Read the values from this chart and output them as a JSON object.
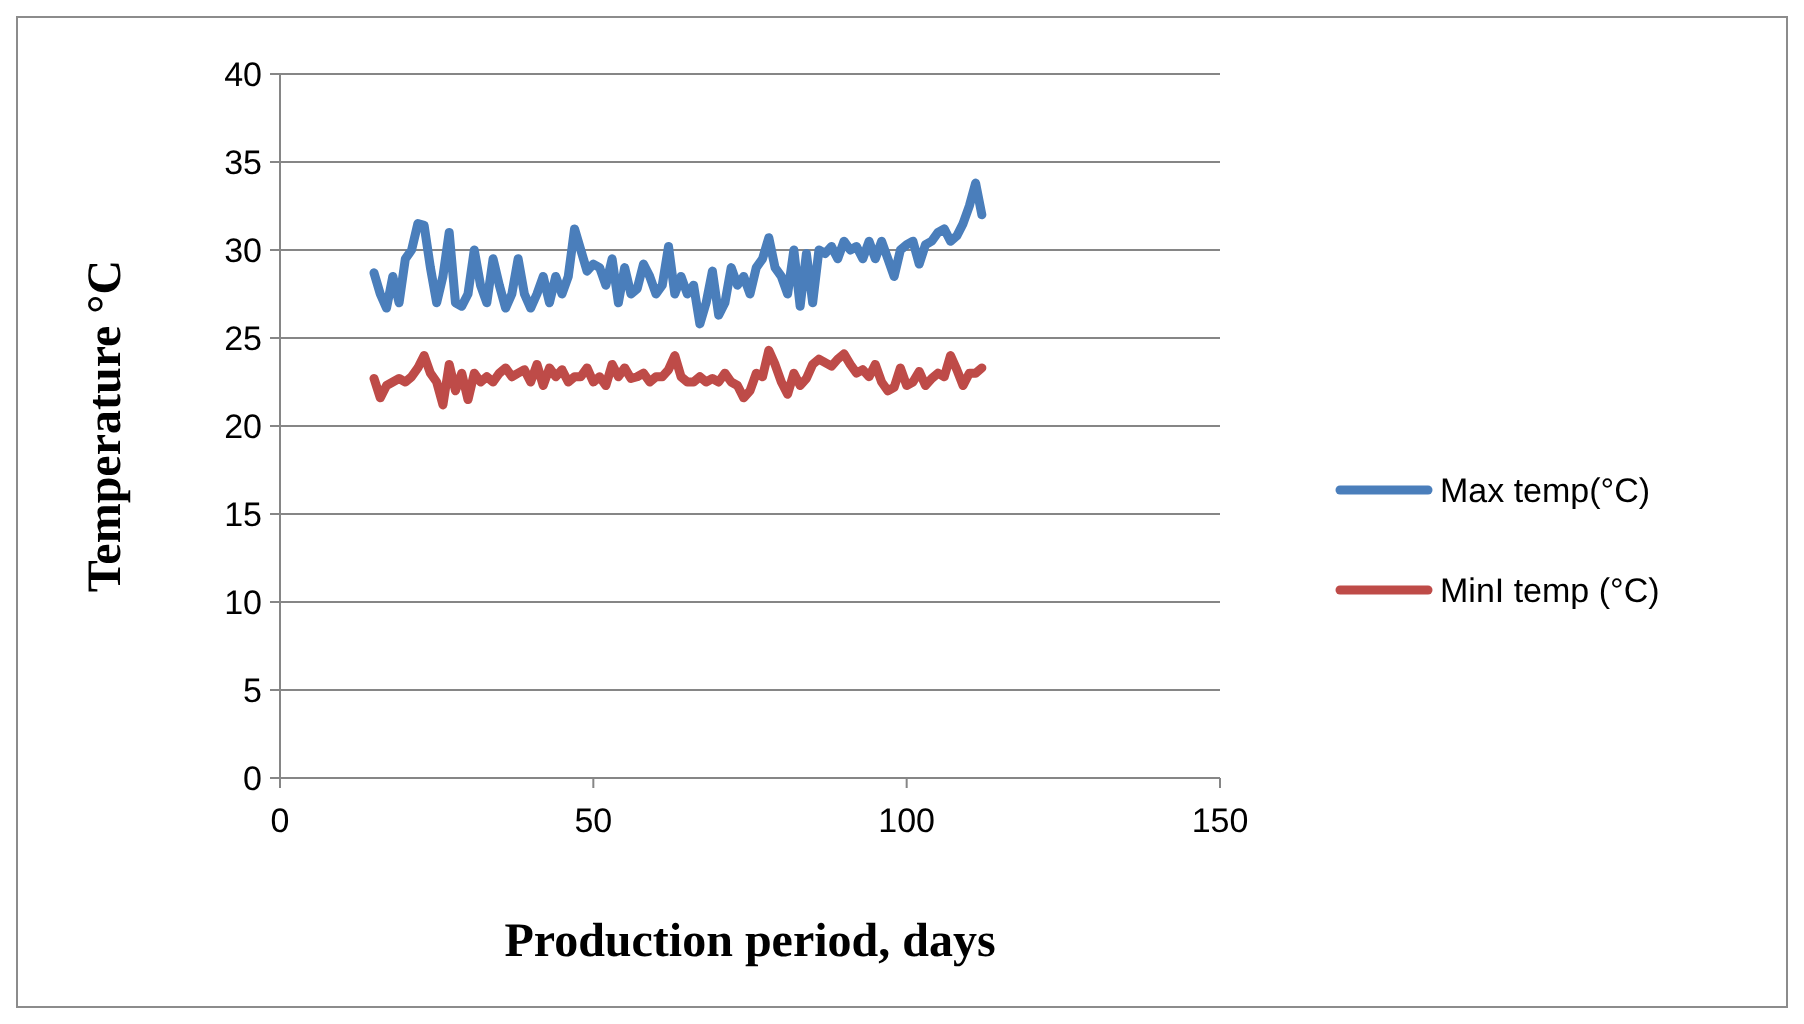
{
  "chart_data": {
    "type": "line",
    "xlabel": "Production period, days",
    "ylabel": "Temperature °C",
    "x": [
      15,
      16,
      17,
      18,
      19,
      20,
      21,
      22,
      23,
      24,
      25,
      26,
      27,
      28,
      29,
      30,
      31,
      32,
      33,
      34,
      35,
      36,
      37,
      38,
      39,
      40,
      41,
      42,
      43,
      44,
      45,
      46,
      47,
      48,
      49,
      50,
      51,
      52,
      53,
      54,
      55,
      56,
      57,
      58,
      59,
      60,
      61,
      62,
      63,
      64,
      65,
      66,
      67,
      68,
      69,
      70,
      71,
      72,
      73,
      74,
      75,
      76,
      77,
      78,
      79,
      80,
      81,
      82,
      83,
      84,
      85,
      86,
      87,
      88,
      89,
      90,
      91,
      92,
      93,
      94,
      95,
      96,
      97,
      98,
      99,
      100,
      101,
      102,
      103,
      104,
      105,
      106,
      107,
      108,
      109,
      110,
      111,
      112
    ],
    "series": [
      {
        "name": "Max temp(°C)",
        "color": "#4a7ebb",
        "values": [
          28.7,
          27.5,
          26.7,
          28.5,
          27,
          29.5,
          30,
          31.5,
          31.4,
          29,
          27,
          28.5,
          31,
          27,
          26.8,
          27.5,
          30,
          28,
          27,
          29.5,
          28,
          26.7,
          27.5,
          29.5,
          27.5,
          26.7,
          27.5,
          28.5,
          27,
          28.5,
          27.5,
          28.5,
          31.2,
          30,
          28.8,
          29.2,
          29,
          28,
          29.5,
          27,
          29,
          27.5,
          27.8,
          29.2,
          28.5,
          27.5,
          28,
          30.2,
          27.5,
          28.5,
          27.5,
          28,
          25.8,
          27,
          28.8,
          26.3,
          27,
          29,
          28,
          28.5,
          27.5,
          29,
          29.5,
          30.7,
          29,
          28.5,
          27.5,
          30,
          26.8,
          29.8,
          27,
          30,
          29.8,
          30.2,
          29.5,
          30.5,
          30,
          30.2,
          29.5,
          30.5,
          29.5,
          30.5,
          29.5,
          28.5,
          30,
          30.3,
          30.5,
          29.2,
          30.3,
          30.5,
          31,
          31.2,
          30.5,
          30.8,
          31.5,
          32.5,
          33.8,
          32
        ]
      },
      {
        "name": "MinI temp (°C)",
        "color": "#be4b48",
        "values": [
          22.7,
          21.6,
          22.3,
          22.5,
          22.7,
          22.5,
          22.8,
          23.3,
          24,
          23,
          22.5,
          21.2,
          23.5,
          22,
          23,
          21.5,
          23,
          22.5,
          22.8,
          22.5,
          23,
          23.3,
          22.8,
          23,
          23.2,
          22.5,
          23.5,
          22.3,
          23.3,
          22.8,
          23.2,
          22.5,
          22.8,
          22.8,
          23.3,
          22.5,
          22.8,
          22.3,
          23.5,
          22.8,
          23.3,
          22.7,
          22.8,
          23,
          22.5,
          22.8,
          22.8,
          23.2,
          24,
          22.8,
          22.5,
          22.5,
          22.8,
          22.5,
          22.7,
          22.5,
          23,
          22.5,
          22.3,
          21.6,
          22,
          23,
          22.8,
          24.3,
          23.5,
          22.5,
          21.8,
          23,
          22.3,
          22.7,
          23.5,
          23.8,
          23.6,
          23.4,
          23.8,
          24.1,
          23.5,
          23,
          23.2,
          22.8,
          23.5,
          22.5,
          22,
          22.2,
          23.3,
          22.3,
          22.5,
          23.1,
          22.3,
          22.7,
          23,
          22.8,
          24,
          23.2,
          22.3,
          23,
          23,
          23.3
        ]
      }
    ],
    "xlim": [
      0,
      150
    ],
    "xticks": [
      0,
      50,
      100,
      150
    ],
    "ylim": [
      0,
      40
    ],
    "yticks": [
      0,
      5,
      10,
      15,
      20,
      25,
      30,
      35,
      40
    ],
    "grid": "y",
    "legend": "right",
    "marker": "none",
    "line_style": "solid"
  }
}
